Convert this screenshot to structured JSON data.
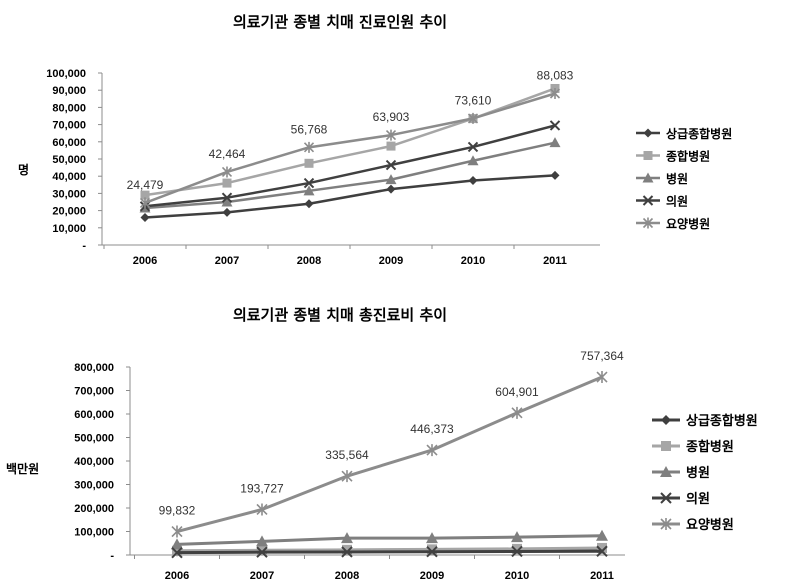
{
  "chart_data": [
    {
      "type": "line",
      "title": "의료기관 종별 치매 진료인원 추이",
      "ylabel": "명",
      "xlabel": "",
      "categories": [
        "2006",
        "2007",
        "2008",
        "2009",
        "2010",
        "2011"
      ],
      "ylim": [
        0,
        100000
      ],
      "yticks": [
        "-",
        "10,000",
        "20,000",
        "30,000",
        "40,000",
        "50,000",
        "60,000",
        "70,000",
        "80,000",
        "90,000",
        "100,000"
      ],
      "grid": false,
      "legend_position": "right",
      "series": [
        {
          "name": "상급종합병원",
          "marker": "diamond",
          "color": "#3f3f3f",
          "values": [
            16000,
            19000,
            24000,
            32500,
            37500,
            40500
          ]
        },
        {
          "name": "종합병원",
          "marker": "square",
          "color": "#a6a6a6",
          "values": [
            29000,
            36000,
            47500,
            57500,
            73500,
            91000
          ]
        },
        {
          "name": "병원",
          "marker": "triangle",
          "color": "#7f7f7f",
          "values": [
            21500,
            25000,
            31500,
            38000,
            49000,
            59500
          ]
        },
        {
          "name": "의원",
          "marker": "x",
          "color": "#404040",
          "values": [
            22500,
            27500,
            36000,
            46500,
            57000,
            69500
          ]
        },
        {
          "name": "요양병원",
          "marker": "star",
          "color": "#8c8c8c",
          "values": [
            24479,
            42464,
            56768,
            63903,
            73610,
            88083
          ]
        }
      ],
      "data_labels": {
        "series": "요양병원",
        "labels": [
          "24,479",
          "42,464",
          "56,768",
          "63,903",
          "73,610",
          "88,083"
        ]
      }
    },
    {
      "type": "line",
      "title": "의료기관 종별 치매 총진료비 추이",
      "ylabel": "백만원",
      "xlabel": "",
      "categories": [
        "2006",
        "2007",
        "2008",
        "2009",
        "2010",
        "2011"
      ],
      "ylim": [
        0,
        800000
      ],
      "yticks": [
        "-",
        "100,000",
        "200,000",
        "300,000",
        "400,000",
        "500,000",
        "600,000",
        "700,000",
        "800,000"
      ],
      "grid": false,
      "legend_position": "right",
      "series": [
        {
          "name": "상급종합병원",
          "marker": "diamond",
          "color": "#3f3f3f",
          "values": [
            15000,
            18000,
            20000,
            22000,
            24000,
            26000
          ]
        },
        {
          "name": "종합병원",
          "marker": "square",
          "color": "#a6a6a6",
          "values": [
            18000,
            20000,
            22000,
            24000,
            26000,
            30000
          ]
        },
        {
          "name": "병원",
          "marker": "triangle",
          "color": "#7f7f7f",
          "values": [
            45000,
            58000,
            72000,
            72000,
            76000,
            82000
          ]
        },
        {
          "name": "의원",
          "marker": "x",
          "color": "#404040",
          "values": [
            10000,
            12000,
            13000,
            14000,
            15000,
            16000
          ]
        },
        {
          "name": "요양병원",
          "marker": "star",
          "color": "#8c8c8c",
          "values": [
            99832,
            193727,
            335564,
            446373,
            604901,
            757364
          ]
        }
      ],
      "data_labels": {
        "series": "요양병원",
        "labels": [
          "99,832",
          "193,727",
          "335,564",
          "446,373",
          "604,901",
          "757,364"
        ]
      }
    }
  ]
}
